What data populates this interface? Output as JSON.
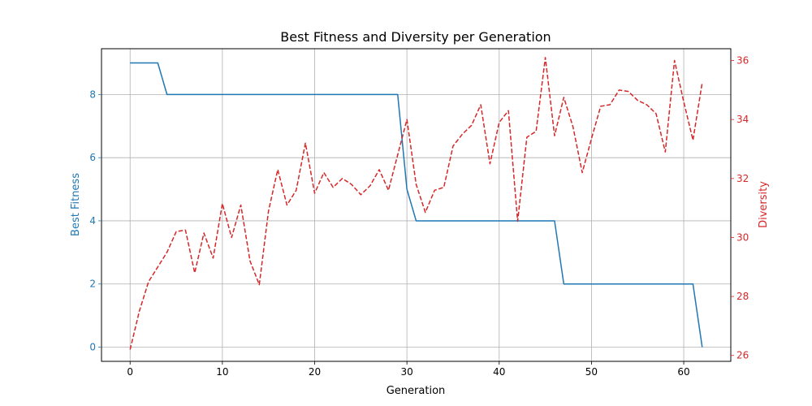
{
  "chart_data": {
    "type": "line",
    "title": "Best Fitness and Diversity per Generation",
    "xlabel": "Generation",
    "ylabel_left": "Best Fitness",
    "ylabel_right": "Diversity",
    "xlim": [
      -3.1,
      65.1
    ],
    "ylim_left": [
      -0.45,
      9.45
    ],
    "ylim_right": [
      25.8,
      36.4
    ],
    "x_ticks": [
      0,
      10,
      20,
      30,
      40,
      50,
      60
    ],
    "y_ticks_left": [
      0,
      2,
      4,
      6,
      8
    ],
    "y_ticks_right": [
      26,
      28,
      30,
      32,
      34,
      36
    ],
    "grid": true,
    "colors": {
      "fitness": "#1f77b4",
      "diversity": "#d62728"
    },
    "series": [
      {
        "axis": "left",
        "style": "solid",
        "x": [
          0,
          3,
          4,
          29,
          30,
          31,
          46,
          47,
          61,
          62
        ],
        "values": [
          9,
          9,
          8,
          8,
          5,
          4,
          4,
          2,
          2,
          0
        ]
      },
      {
        "axis": "right",
        "style": "dashed",
        "x": [
          0,
          1,
          2,
          3,
          4,
          5,
          6,
          7,
          8,
          9,
          10,
          11,
          12,
          13,
          14,
          15,
          16,
          17,
          18,
          19,
          20,
          21,
          22,
          23,
          24,
          25,
          26,
          27,
          28,
          29,
          30,
          31,
          32,
          33,
          34,
          35,
          36,
          37,
          38,
          39,
          40,
          41,
          42,
          43,
          44,
          45,
          46,
          47,
          48,
          49,
          50,
          51,
          52,
          53,
          54,
          55,
          56,
          57,
          58,
          59,
          60,
          61,
          62
        ],
        "values": [
          26.2,
          27.5,
          28.5,
          29.0,
          29.5,
          30.2,
          30.25,
          28.8,
          30.15,
          29.3,
          31.15,
          30.0,
          31.1,
          29.2,
          28.4,
          30.9,
          32.3,
          31.1,
          31.6,
          33.2,
          31.5,
          32.2,
          31.7,
          32.0,
          31.8,
          31.45,
          31.75,
          32.3,
          31.6,
          32.8,
          34.0,
          31.8,
          30.85,
          31.6,
          31.7,
          33.1,
          33.5,
          33.8,
          34.5,
          32.5,
          33.9,
          34.3,
          30.55,
          33.4,
          33.6,
          36.1,
          33.45,
          34.75,
          33.75,
          32.2,
          33.35,
          34.45,
          34.5,
          35.0,
          34.95,
          34.65,
          34.5,
          34.2,
          32.9,
          36.0,
          34.6,
          33.3,
          35.25
        ]
      }
    ]
  }
}
